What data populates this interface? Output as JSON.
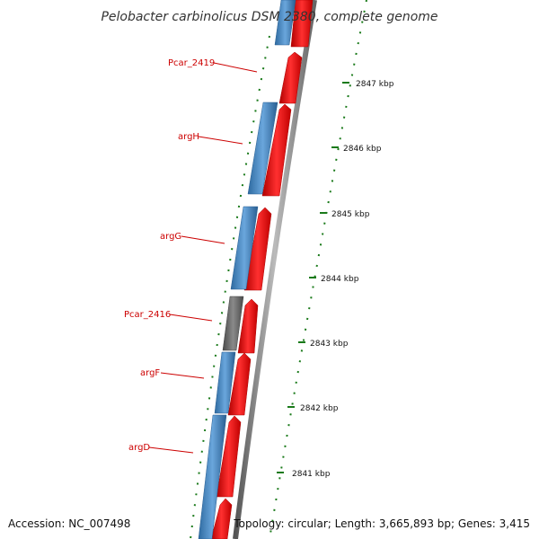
{
  "title": "Pelobacter carbinolicus DSM 2380, complete genome",
  "footer": {
    "accession": "Accession: NC_007498",
    "topology": "Topology: circular; Length: 3,665,893 bp; Genes: 3,415"
  },
  "gene_labels": [
    "Pcar_2419",
    "argH",
    "argG",
    "Pcar_2416",
    "argF",
    "argD"
  ],
  "tick_labels": [
    "2847 kbp",
    "2846 kbp",
    "2845 kbp",
    "2844 kbp",
    "2843 kbp",
    "2842 kbp",
    "2841 kbp"
  ],
  "colors": {
    "cds": "#ff0000",
    "gene": "#3f83bf",
    "pseudo": "#666666",
    "label": "#cc0000",
    "gc_tick": "#1a7a1a",
    "backbone": "#888888"
  }
}
